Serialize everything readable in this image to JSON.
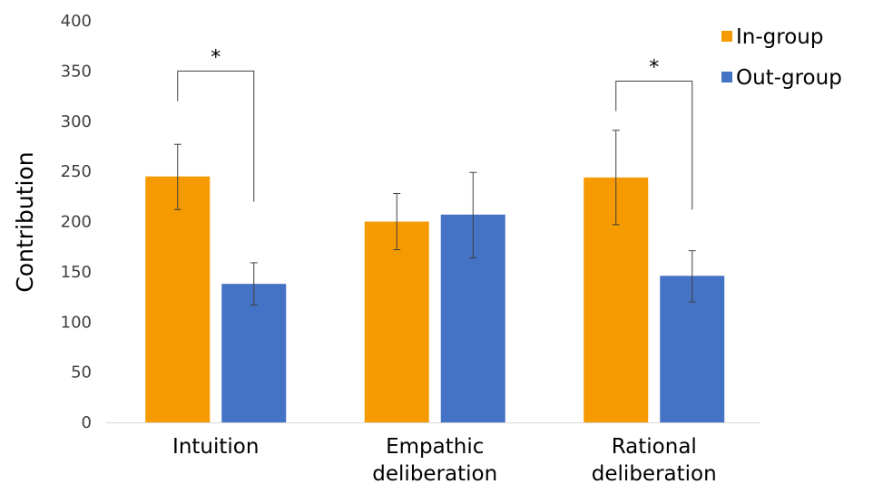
{
  "chart_data": {
    "type": "bar",
    "title": "",
    "xlabel": "",
    "ylabel": "Contribution",
    "ylim": [
      0,
      400
    ],
    "yticks": [
      0,
      50,
      100,
      150,
      200,
      250,
      300,
      350,
      400
    ],
    "categories": [
      [
        "Intuition"
      ],
      [
        "Empathic",
        "deliberation"
      ],
      [
        "Rational",
        "deliberation"
      ]
    ],
    "series": [
      {
        "name": "In-group",
        "color": "#F59A00",
        "values": [
          245,
          200,
          244
        ],
        "err_low": [
          212,
          172,
          197
        ],
        "err_high": [
          277,
          228,
          291
        ]
      },
      {
        "name": "Out-group",
        "color": "#4472C4",
        "values": [
          138,
          207,
          146
        ],
        "err_low": [
          117,
          164,
          120
        ],
        "err_high": [
          159,
          249,
          171
        ]
      }
    ],
    "legend_position": "top-right",
    "significance": [
      {
        "category_index": 0,
        "label": "*",
        "bracket_y": 350,
        "left_y": 320,
        "right_y": 220
      },
      {
        "category_index": 2,
        "label": "*",
        "bracket_y": 340,
        "left_y": 310,
        "right_y": 212
      }
    ]
  }
}
